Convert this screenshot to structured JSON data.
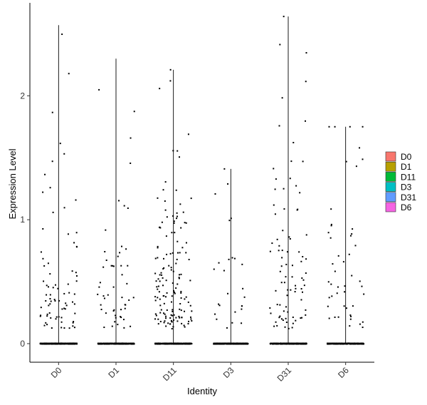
{
  "chart_data": {
    "type": "violin",
    "xlabel": "Identity",
    "ylabel": "Expression Level",
    "categories": [
      "D0",
      "D1",
      "D11",
      "D3",
      "D31",
      "D6"
    ],
    "ylim": [
      -0.15,
      2.75
    ],
    "yticks": [
      0,
      1,
      2
    ],
    "grid": false,
    "legend_position": "right",
    "legend": [
      {
        "name": "D0",
        "color": "#F8766D"
      },
      {
        "name": "D1",
        "color": "#B79F00"
      },
      {
        "name": "D11",
        "color": "#00BA38"
      },
      {
        "name": "D3",
        "color": "#00BFC4"
      },
      {
        "name": "D31",
        "color": "#619CFF"
      },
      {
        "name": "D6",
        "color": "#F564E3"
      }
    ],
    "series": [
      {
        "name": "D0",
        "max": 2.57,
        "nonzero_count": 78,
        "zero_count": 400,
        "jitter_width": 0.32
      },
      {
        "name": "D1",
        "max": 2.3,
        "nonzero_count": 52,
        "zero_count": 380,
        "jitter_width": 0.32
      },
      {
        "name": "D11",
        "max": 2.21,
        "nonzero_count": 150,
        "zero_count": 380,
        "jitter_width": 0.32
      },
      {
        "name": "D3",
        "max": 1.41,
        "nonzero_count": 26,
        "zero_count": 420,
        "jitter_width": 0.3
      },
      {
        "name": "D31",
        "max": 2.64,
        "nonzero_count": 86,
        "zero_count": 400,
        "jitter_width": 0.32
      },
      {
        "name": "D6",
        "max": 1.75,
        "nonzero_count": 48,
        "zero_count": 380,
        "jitter_width": 0.32
      }
    ]
  }
}
